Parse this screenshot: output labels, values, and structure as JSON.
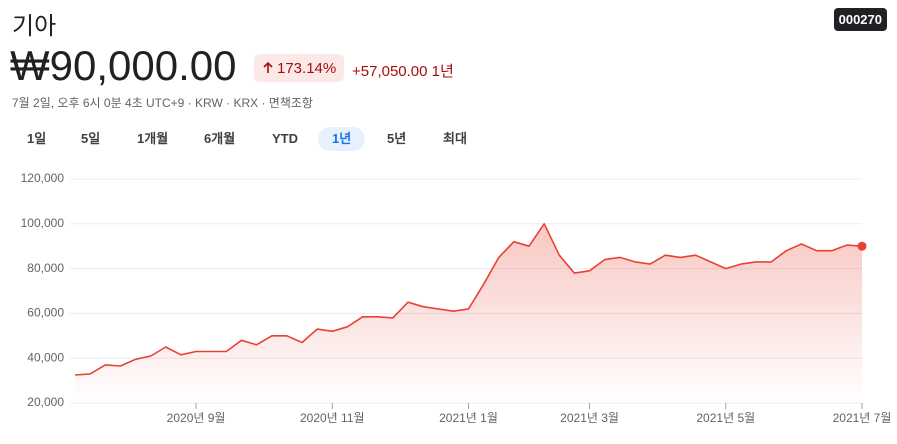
{
  "header": {
    "title": "기아",
    "ticker": "000270",
    "price": "₩90,000.00",
    "change_pct": "173.14%",
    "change_abs": "+57,050.00",
    "period": "1년",
    "meta": "7월 2일, 오후 6시 0분 4초 UTC+9 · KRW · KRX · 면책조항",
    "ranges": [
      "1일",
      "5일",
      "1개월",
      "6개월",
      "YTD",
      "1년",
      "5년",
      "최대"
    ]
  },
  "chart_data": {
    "type": "line",
    "color": "#e94235",
    "grid": true,
    "categories": [
      null,
      null,
      null,
      null,
      null,
      null,
      null,
      null,
      "2020년 9월",
      null,
      null,
      null,
      null,
      null,
      null,
      null,
      null,
      "2020년 11월",
      null,
      null,
      null,
      null,
      null,
      null,
      null,
      null,
      "2021년 1월",
      null,
      null,
      null,
      null,
      null,
      null,
      null,
      "2021년 3월",
      null,
      null,
      null,
      null,
      null,
      null,
      null,
      null,
      "2021년 5월",
      null,
      null,
      null,
      null,
      null,
      null,
      null,
      null,
      "2021년 7월"
    ],
    "values": [
      32500,
      33000,
      37000,
      36500,
      39500,
      41000,
      45000,
      41500,
      43000,
      43000,
      43000,
      48000,
      46000,
      50000,
      50000,
      47000,
      53000,
      52000,
      54000,
      58500,
      58500,
      58000,
      65000,
      63000,
      62000,
      61000,
      62000,
      73000,
      85000,
      92000,
      90000,
      100000,
      86000,
      78000,
      79000,
      84000,
      85000,
      83000,
      82000,
      86000,
      85000,
      86000,
      83000,
      80000,
      82000,
      83000,
      83000,
      88000,
      91000,
      88000,
      88000,
      90500,
      90000
    ],
    "ylim": [
      20000,
      120000
    ],
    "yticks": [
      {
        "value": 20000,
        "label": "20,000"
      },
      {
        "value": 40000,
        "label": "40,000"
      },
      {
        "value": 60000,
        "label": "60,000"
      },
      {
        "value": 80000,
        "label": "80,000"
      },
      {
        "value": 100000,
        "label": "100,000"
      },
      {
        "value": 120000,
        "label": "120,000"
      }
    ]
  }
}
